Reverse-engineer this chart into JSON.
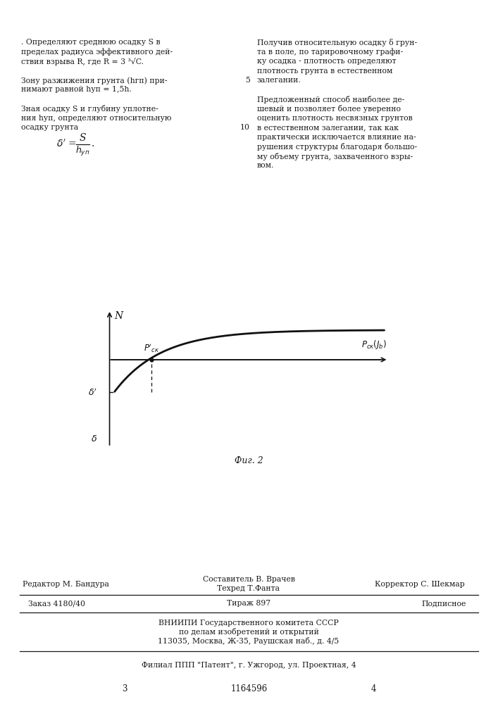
{
  "page_number_left": "3",
  "page_number_center": "1164596",
  "page_number_right": "4",
  "left_col_lines": [
    ". Определяют среднюю осадку S в",
    "пределах радиуса эффективного дей-",
    "ствия взрыва R, где R = 3 ³√C.",
    "",
    "Зону разжижения грунта (hгп) при-",
    "нимают равной hуп = 1,5h.",
    "",
    "Зная осадку S и глубину уплотне-",
    "ния hуп, определяют относительную",
    "осадку грунта"
  ],
  "right_col_lines": [
    "Получив относительную осадку δ грун-",
    "та в поле, по тарировочному графи-",
    "ку осадка - плотность определяют",
    "плотность грунта в естественном",
    "залегании.",
    "",
    "Предложенный способ наиболее де-",
    "шевый и позволяет более уверенно",
    "оценить плотность несвязных грунтов",
    "в естественном залегании, так как",
    "практически исключается влияние на-",
    "рушения структуры благодаря большо-",
    "му объему грунта, захваченного взры-",
    "вом."
  ],
  "line_num_5_idx": 4,
  "line_num_10_idx": 9,
  "fig_caption": "Фиг. 2",
  "footer_editor_left": "Редактор М. Бандура",
  "footer_comp_top": "Составитель В. Врачев",
  "footer_comp_bot": "Техред Т.Фанта",
  "footer_corrector": "Корректор С. Шекмар",
  "footer_order": "Заказ 4180/40",
  "footer_tirazh": "Тираж 897",
  "footer_podp": "Подписное",
  "footer_vnipi": "ВНИИПИ Государственного комитета СССР",
  "footer_dela": "по делам изобретений и открытий",
  "footer_addr": "113035, Москва, Ж-35, Раушская наб., д. 4/5",
  "footer_filial": "Филиал ППП \"Патент\", г. Ужгород, ул. Проектная, 4",
  "bg_color": "#ffffff",
  "text_color": "#1a1a1a",
  "curve_color": "#111111"
}
